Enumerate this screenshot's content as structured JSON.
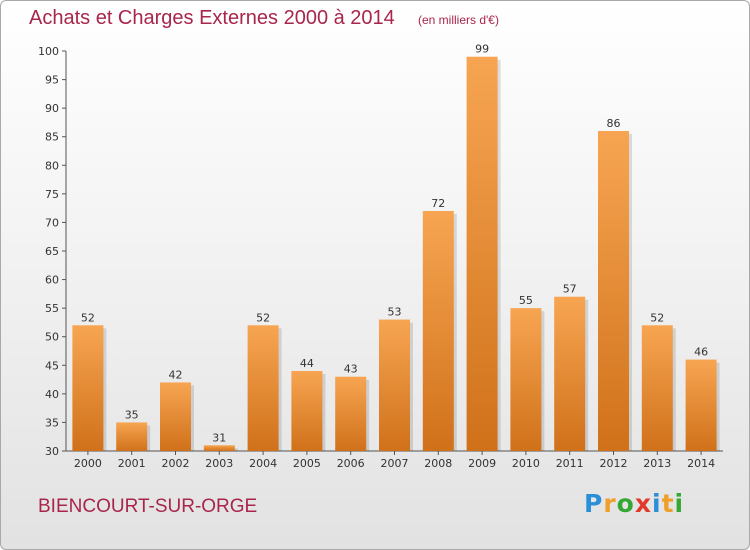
{
  "header": {
    "title": "Achats et Charges Externes 2000 à 2014",
    "unit": "(en milliers d'€)"
  },
  "footer": {
    "commune": "BIENCOURT-SUR-ORGE",
    "brand": [
      "P",
      "r",
      "o",
      "x",
      "i",
      "t",
      "i"
    ],
    "brand_colors": [
      "#2a8fd6",
      "#f0a02a",
      "#35a834",
      "#e03a2c",
      "#2a8fd6",
      "#f0a02a",
      "#35a834"
    ]
  },
  "chart_data": {
    "type": "bar",
    "categories": [
      "2000",
      "2001",
      "2002",
      "2003",
      "2004",
      "2005",
      "2006",
      "2007",
      "2008",
      "2009",
      "2010",
      "2011",
      "2012",
      "2013",
      "2014"
    ],
    "values": [
      52,
      35,
      42,
      31,
      52,
      44,
      43,
      53,
      72,
      99,
      55,
      57,
      86,
      52,
      46
    ],
    "title": "Achats et Charges Externes 2000 à 2014",
    "subtitle": "(en milliers d'€)",
    "xlabel": "",
    "ylabel": "",
    "ylim": [
      30,
      100
    ],
    "yticks": [
      30,
      35,
      40,
      45,
      50,
      55,
      60,
      65,
      70,
      75,
      80,
      85,
      90,
      95,
      100
    ],
    "grid": false,
    "bar_color": "#f0912f",
    "bar_color_light": "#f7a552",
    "bar_color_dark": "#d0711a"
  }
}
